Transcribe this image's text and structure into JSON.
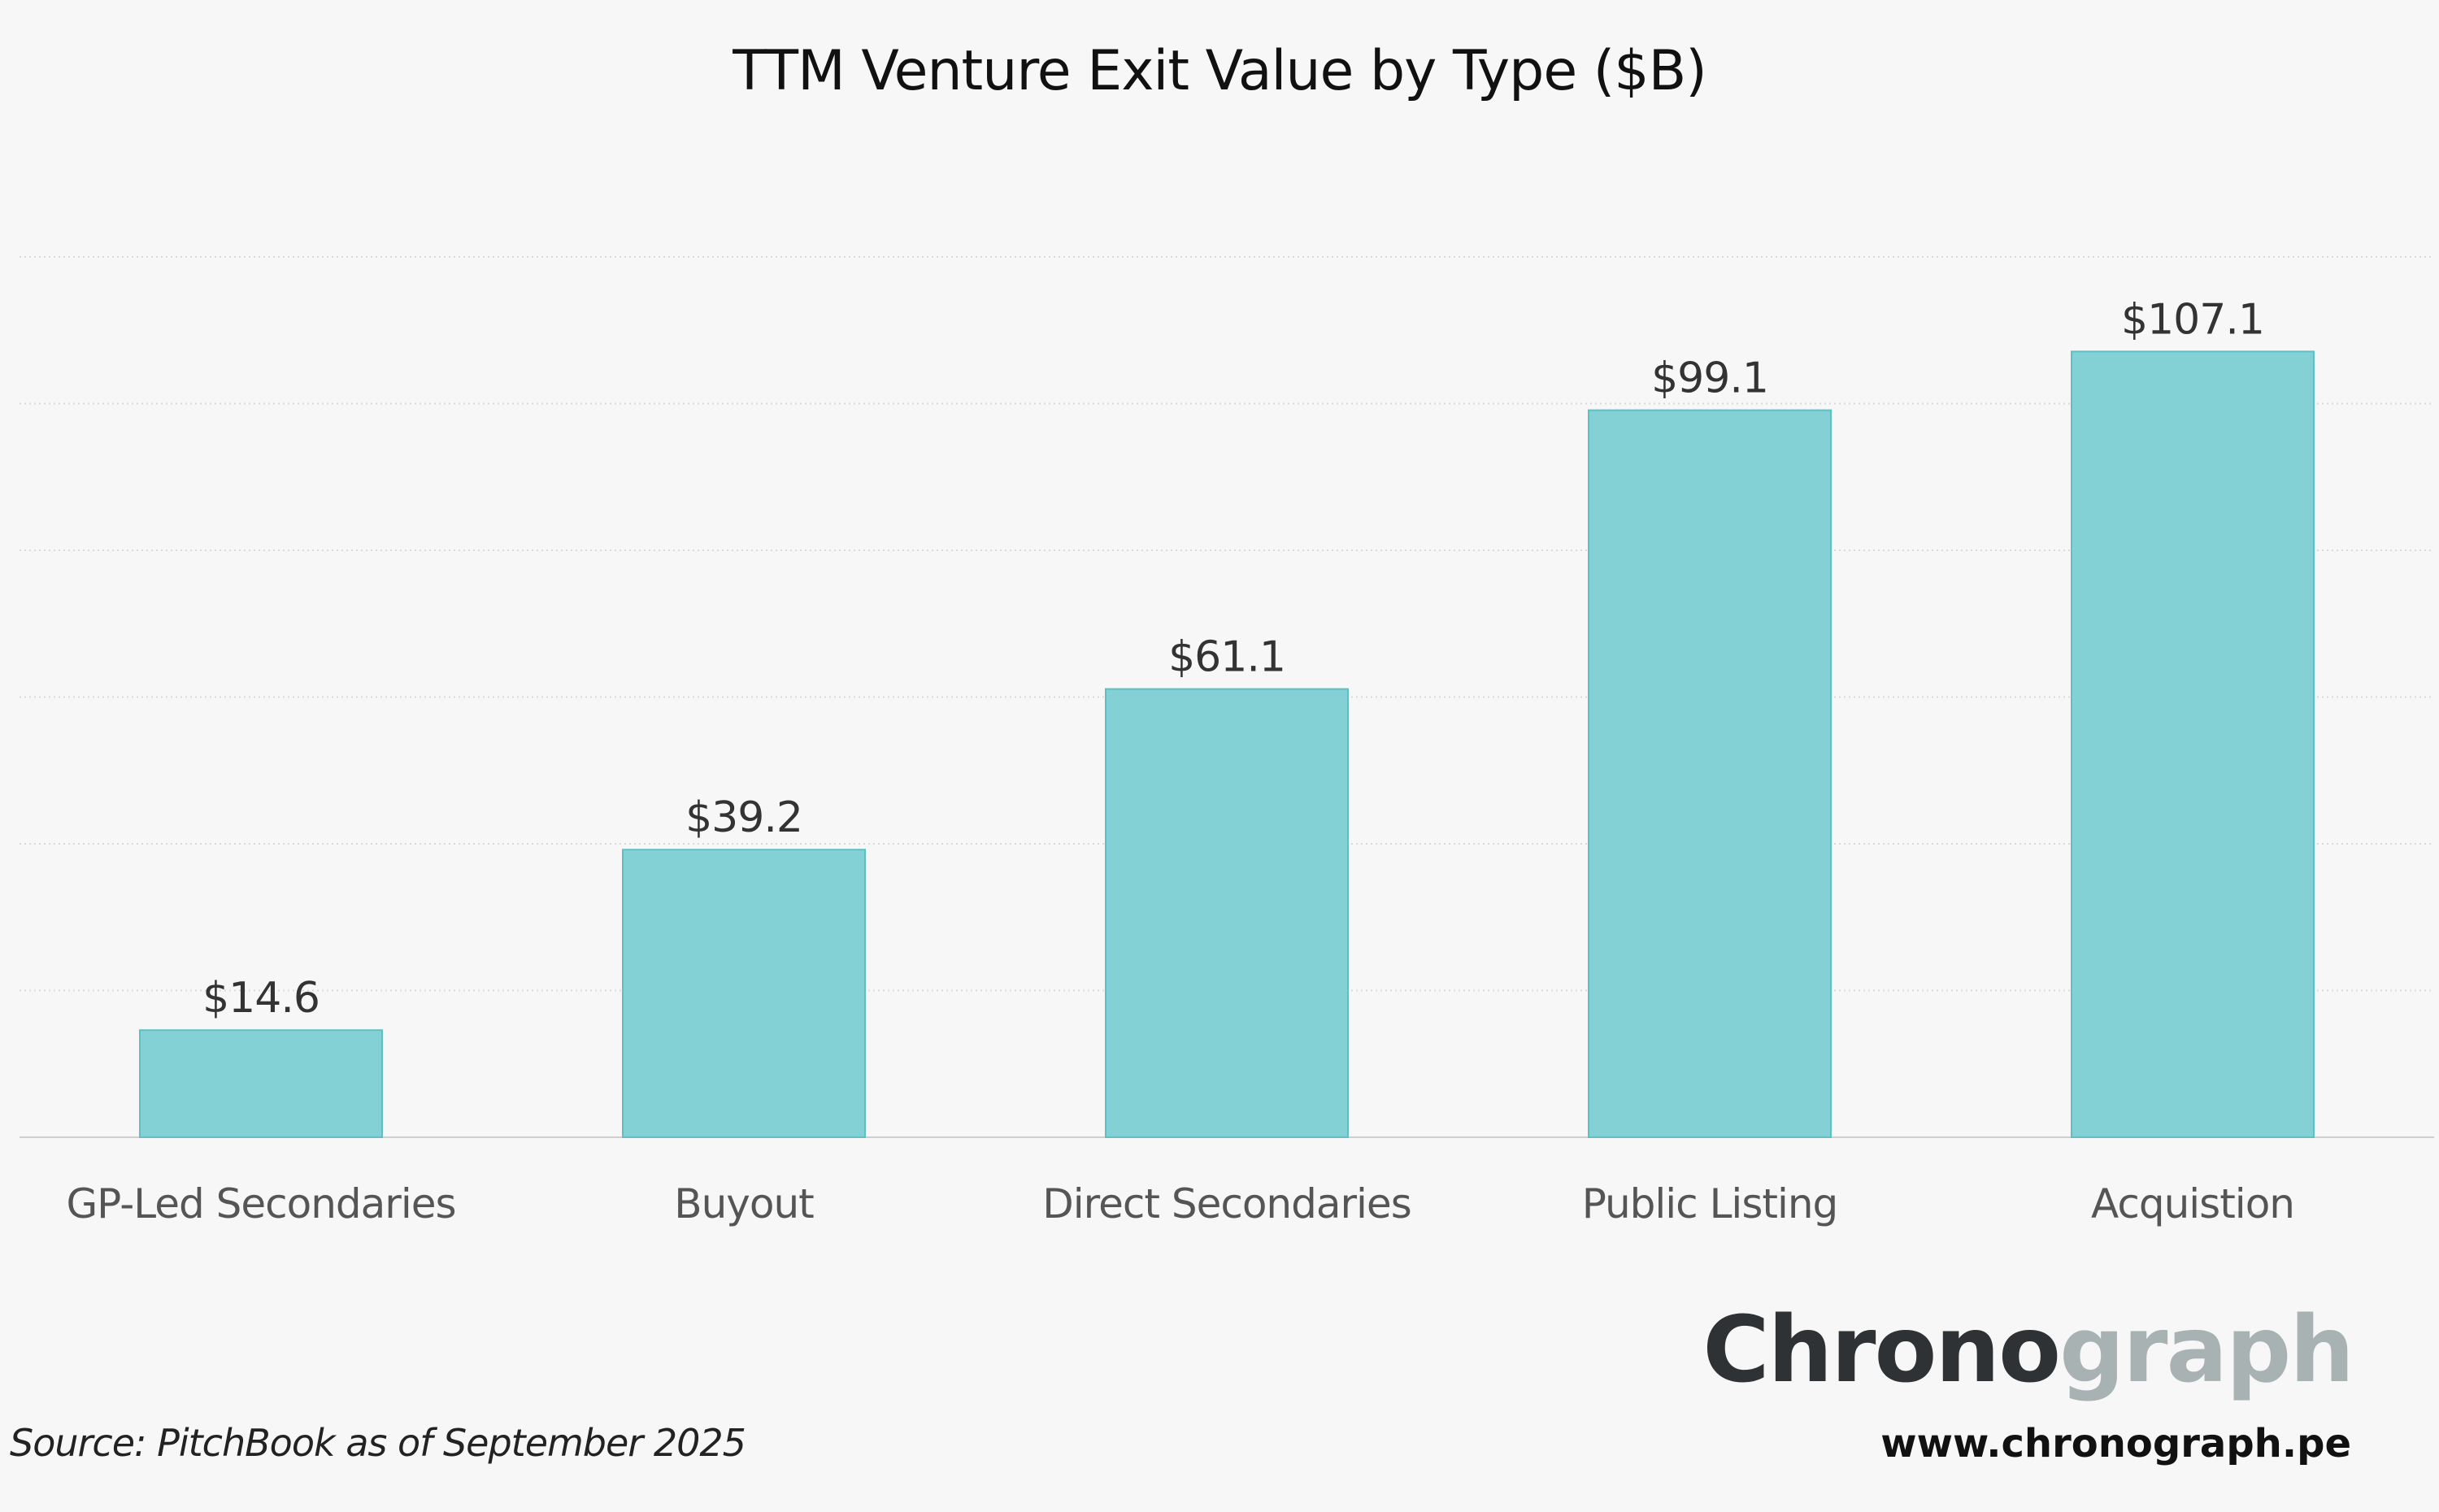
{
  "chart_data": {
    "type": "bar",
    "title": "TTM Venture Exit Value by Type ($B)",
    "xlabel": "",
    "ylabel": "",
    "categories": [
      "GP-Led Secondaries",
      "Buyout",
      "Direct Secondaries",
      "Public Listing",
      "Acquistion"
    ],
    "values": [
      14.6,
      39.2,
      61.1,
      99.1,
      107.1
    ],
    "data_labels": [
      "$14.6",
      "$39.2",
      "$61.1",
      "$99.1",
      "$107.1"
    ],
    "ylim": [
      0,
      120
    ],
    "gridlines": [
      0,
      20,
      40,
      60,
      80,
      100,
      120
    ],
    "grid": true,
    "legend": "none",
    "bar_color": "#84d1d5"
  },
  "footer": {
    "source": "Source: PitchBook as of September 2025",
    "logo_dark": "Chrono",
    "logo_light": "graph",
    "website": "www.chronograph.pe"
  }
}
